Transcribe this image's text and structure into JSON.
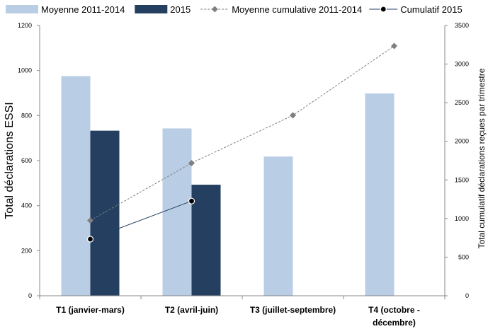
{
  "chart_data": {
    "type": "bar",
    "categories": [
      "T1 (janvier-mars)",
      "T2 (avril-juin)",
      "T3 (juillet-septembre)",
      "T4 (octobre - décembre)"
    ],
    "category_lines": [
      [
        "T1 (janvier-mars)"
      ],
      [
        "T2 (avril-juin)"
      ],
      [
        "T3 (juillet-septembre)"
      ],
      [
        "T4 (octobre -",
        "décembre)"
      ]
    ],
    "ylabel": "Total déclarations ESSI",
    "y2label": "Total cumulatif déclarations reçues par trimestre",
    "ylim": [
      0,
      1200
    ],
    "y2lim": [
      0,
      3500
    ],
    "yticks": [
      "0",
      "200",
      "400",
      "600",
      "800",
      "1000",
      "1200"
    ],
    "y2ticks": [
      "0",
      "500",
      "1000",
      "1500",
      "2000",
      "2500",
      "3000",
      "3500"
    ],
    "legend_position": "top",
    "grid": false,
    "bar_series": [
      {
        "name": "Moyenne 2011-2014",
        "color": "#b9cde4",
        "values": [
          975,
          743,
          618,
          898
        ]
      },
      {
        "name": "2015",
        "color": "#243f60",
        "values": [
          733,
          493,
          null,
          null
        ]
      }
    ],
    "line_series": [
      {
        "name": "Moyenne cumulative 2011-2014",
        "axis": "right",
        "color": "#7f7f7f",
        "style": "dashed",
        "marker": "diamond",
        "values": [
          975,
          1718,
          2336,
          3234
        ]
      },
      {
        "name": "Cumulatif 2015",
        "axis": "right",
        "color": "#243f60",
        "style": "solid",
        "marker": "circle",
        "values": [
          733,
          1226,
          null,
          null
        ]
      }
    ]
  }
}
